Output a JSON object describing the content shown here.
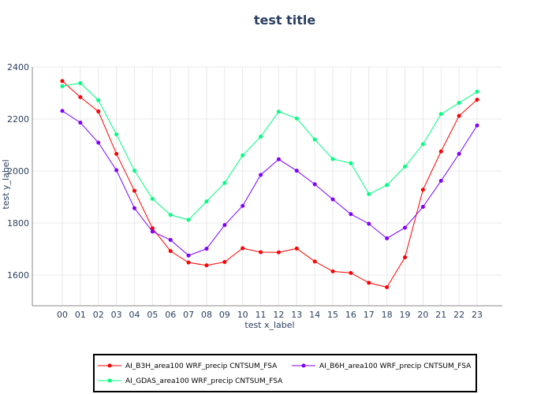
{
  "chart_data": {
    "type": "line",
    "title": "test title",
    "xlabel": "test x_label",
    "ylabel": "test y_label",
    "categories": [
      "00",
      "01",
      "02",
      "03",
      "04",
      "05",
      "06",
      "07",
      "08",
      "09",
      "10",
      "11",
      "12",
      "13",
      "14",
      "15",
      "16",
      "17",
      "18",
      "19",
      "20",
      "21",
      "22",
      "23"
    ],
    "ylim": [
      1480,
      2400
    ],
    "yticks": [
      1600,
      1800,
      2000,
      2200,
      2400
    ],
    "grid": true,
    "legend_position": "bottom",
    "series": [
      {
        "name": "AI_B3H_area100 WRF_precip CNTSUM_FSA",
        "color": "#ff0000",
        "values": [
          2346,
          2284,
          2229,
          2066,
          1924,
          1780,
          1692,
          1648,
          1637,
          1650,
          1703,
          1688,
          1687,
          1702,
          1652,
          1614,
          1608,
          1570,
          1553,
          1668,
          1928,
          2075,
          2212,
          2274
        ]
      },
      {
        "name": "AI_B6H_area100 WRF_precip CNTSUM_FSA",
        "color": "#7f00ff",
        "values": [
          2231,
          2186,
          2109,
          2003,
          1857,
          1767,
          1735,
          1675,
          1701,
          1792,
          1866,
          1985,
          2045,
          2001,
          1949,
          1891,
          1834,
          1797,
          1741,
          1782,
          1862,
          1962,
          2066,
          2175
        ]
      },
      {
        "name": "AI_GDAS_area100 WRF_precip CNTSUM_FSA",
        "color": "#00ff80",
        "values": [
          2326,
          2338,
          2272,
          2141,
          2001,
          1893,
          1831,
          1812,
          1883,
          1954,
          2060,
          2132,
          2228,
          2202,
          2121,
          2046,
          2030,
          1911,
          1946,
          2017,
          2103,
          2219,
          2262,
          2305
        ]
      }
    ]
  }
}
